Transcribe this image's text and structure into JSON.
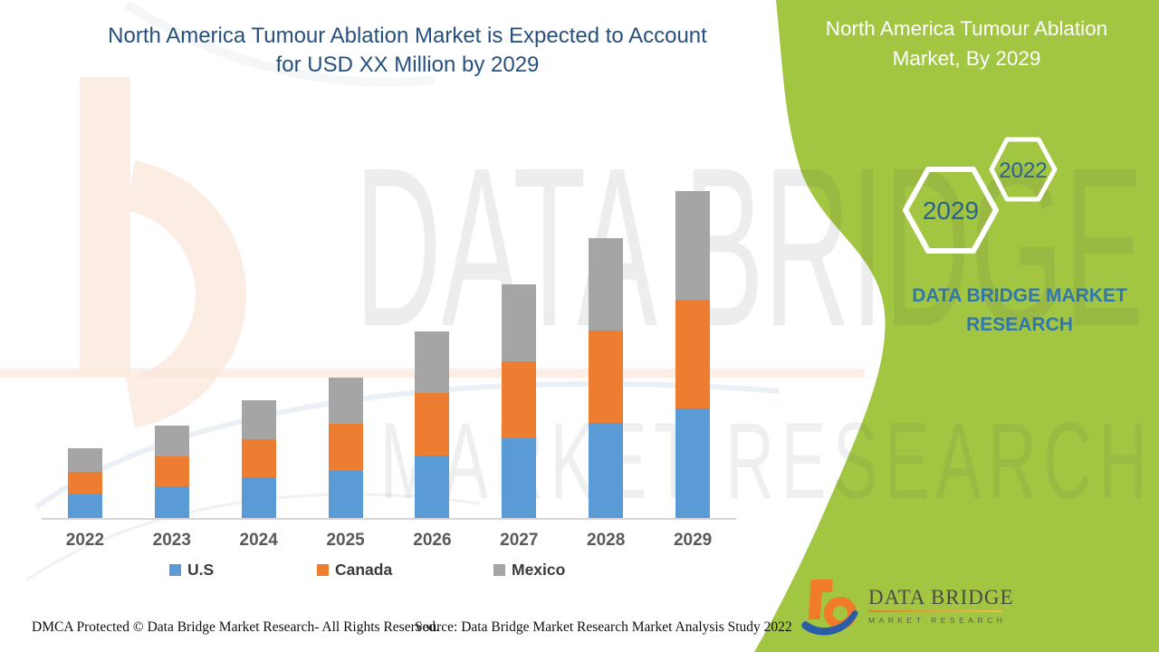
{
  "header": {
    "title_line1": "North America Tumour Ablation Market is Expected to Account",
    "title_line2": "for USD XX Million by 2029"
  },
  "side_panel": {
    "title_line1": "North America Tumour Ablation",
    "title_line2": "Market, By 2029",
    "hexagon_large_label": "2029",
    "hexagon_small_label": "2022",
    "brand_line1": "DATA BRIDGE MARKET",
    "brand_line2": "RESEARCH"
  },
  "logo": {
    "name": "DATA BRIDGE",
    "subtitle": "MARKET RESEARCH",
    "mark": "dbmr-b-swoosh-icon"
  },
  "watermark": {
    "line1": "DATA BRIDGE",
    "line2": "MARKET RESEARCH"
  },
  "footer": {
    "dmca": "DMCA Protected © Data Bridge Market Research- All Rights Reserved.",
    "source": "Source: Data Bridge Market Research Market Analysis Study 2022"
  },
  "colors": {
    "green_panel": "#a3c642",
    "title_text": "#27507e",
    "hexagon_label": "#2b628e",
    "brand_text": "#3277ab",
    "axis_line": "#d6d6d6",
    "x_label": "#595959"
  },
  "chart_data": {
    "type": "bar",
    "stacked": true,
    "title": "North America Tumour Ablation Market is Expected to Account for USD XX Million by 2029",
    "xlabel": "",
    "ylabel": "",
    "y_axis_visible": false,
    "grid": false,
    "legend_position": "bottom",
    "value_note": "y-axis unlabeled in source (values are USD XX Million); values below are relative units estimated from bar heights",
    "categories": [
      "2022",
      "2023",
      "2024",
      "2025",
      "2026",
      "2027",
      "2028",
      "2029"
    ],
    "series": [
      {
        "name": "U.S",
        "color": "#5b9bd5",
        "values": [
          26,
          35,
          45,
          52,
          69,
          88,
          105,
          121
        ]
      },
      {
        "name": "Canada",
        "color": "#ed7d31",
        "values": [
          25,
          33,
          42,
          52,
          69,
          85,
          102,
          120
        ]
      },
      {
        "name": "Mexico",
        "color": "#a5a5a5",
        "values": [
          26,
          34,
          43,
          51,
          68,
          85,
          102,
          120
        ]
      }
    ]
  }
}
